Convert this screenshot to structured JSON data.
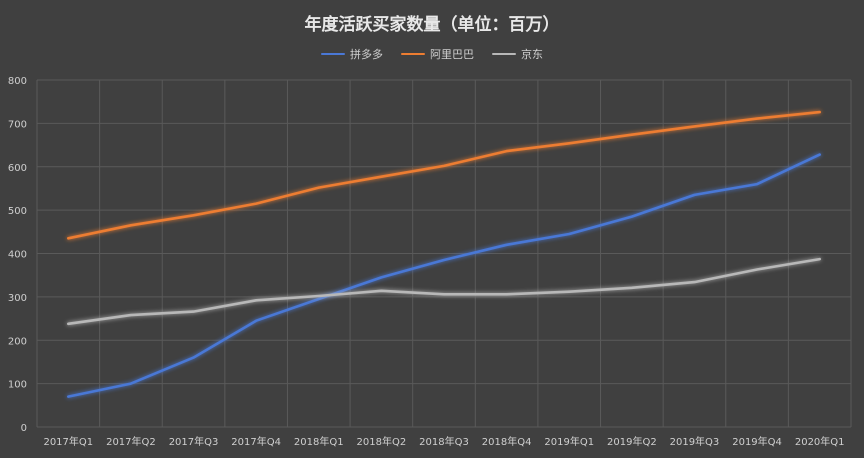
{
  "chart_data": {
    "type": "line",
    "title": "年度活跃买家数量（单位：百万）",
    "xlabel": "",
    "ylabel": "",
    "ylim": [
      0,
      800
    ],
    "y_ticks": [
      0,
      100,
      200,
      300,
      400,
      500,
      600,
      700,
      800
    ],
    "grid": true,
    "legend_position": "top-center",
    "categories": [
      "2017年Q1",
      "2017年Q2",
      "2017年Q3",
      "2017年Q4",
      "2018年Q1",
      "2018年Q2",
      "2018年Q3",
      "2018年Q4",
      "2019年Q1",
      "2019年Q2",
      "2019年Q3",
      "2019年Q4",
      "2020年Q1"
    ],
    "series": [
      {
        "name": "拼多多",
        "color": "#4a78d6",
        "values": [
          70,
          100,
          160,
          245,
          295,
          345,
          385,
          420,
          445,
          485,
          535,
          560,
          628
        ]
      },
      {
        "name": "阿里巴巴",
        "color": "#ed7d31",
        "values": [
          435,
          465,
          488,
          515,
          552,
          577,
          602,
          636,
          654,
          674,
          693,
          711,
          726
        ]
      },
      {
        "name": "京东",
        "color": "#b8b8b8",
        "values": [
          238,
          258,
          266,
          292,
          302,
          314,
          306,
          306,
          312,
          321,
          334,
          363,
          387
        ]
      }
    ]
  }
}
